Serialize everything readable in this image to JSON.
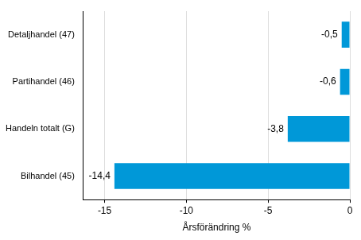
{
  "chart_data": {
    "type": "bar",
    "orientation": "horizontal",
    "x_label": "Årsförändring %",
    "categories": [
      "Detaljhandel (47)",
      "Partihandel (46)",
      "Handeln totalt (G)",
      "Bilhandel (45)"
    ],
    "values": [
      -0.5,
      -0.6,
      -3.8,
      -14.4
    ],
    "value_labels": [
      "-0,5",
      "-0,6",
      "-3,8",
      "-14,4"
    ],
    "data_labels": true,
    "color": "#0098d8",
    "xlim": [
      -16.3,
      0
    ],
    "xticks": [
      -15,
      -10,
      -5,
      0
    ],
    "grid": true
  }
}
